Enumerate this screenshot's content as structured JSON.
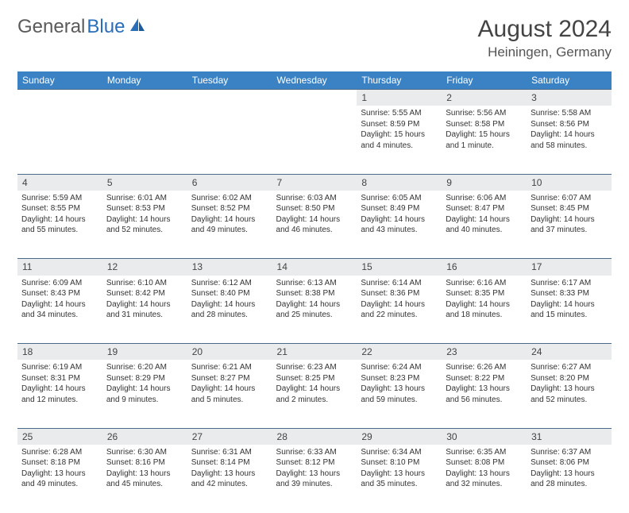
{
  "brand": {
    "part1": "General",
    "part2": "Blue"
  },
  "title": "August 2024",
  "location": "Heiningen, Germany",
  "colors": {
    "header_bg": "#3b82c4",
    "header_text": "#ffffff",
    "daynum_bg": "#e9ebed",
    "border": "#4a6a8a",
    "text": "#333333",
    "logo_gray": "#5a5a5a",
    "logo_blue": "#2a6db8"
  },
  "day_headers": [
    "Sunday",
    "Monday",
    "Tuesday",
    "Wednesday",
    "Thursday",
    "Friday",
    "Saturday"
  ],
  "weeks": [
    {
      "nums": [
        "",
        "",
        "",
        "",
        "1",
        "2",
        "3"
      ],
      "cells": [
        null,
        null,
        null,
        null,
        {
          "sr": "Sunrise: 5:55 AM",
          "ss": "Sunset: 8:59 PM",
          "dl": "Daylight: 15 hours and 4 minutes."
        },
        {
          "sr": "Sunrise: 5:56 AM",
          "ss": "Sunset: 8:58 PM",
          "dl": "Daylight: 15 hours and 1 minute."
        },
        {
          "sr": "Sunrise: 5:58 AM",
          "ss": "Sunset: 8:56 PM",
          "dl": "Daylight: 14 hours and 58 minutes."
        }
      ]
    },
    {
      "nums": [
        "4",
        "5",
        "6",
        "7",
        "8",
        "9",
        "10"
      ],
      "cells": [
        {
          "sr": "Sunrise: 5:59 AM",
          "ss": "Sunset: 8:55 PM",
          "dl": "Daylight: 14 hours and 55 minutes."
        },
        {
          "sr": "Sunrise: 6:01 AM",
          "ss": "Sunset: 8:53 PM",
          "dl": "Daylight: 14 hours and 52 minutes."
        },
        {
          "sr": "Sunrise: 6:02 AM",
          "ss": "Sunset: 8:52 PM",
          "dl": "Daylight: 14 hours and 49 minutes."
        },
        {
          "sr": "Sunrise: 6:03 AM",
          "ss": "Sunset: 8:50 PM",
          "dl": "Daylight: 14 hours and 46 minutes."
        },
        {
          "sr": "Sunrise: 6:05 AM",
          "ss": "Sunset: 8:49 PM",
          "dl": "Daylight: 14 hours and 43 minutes."
        },
        {
          "sr": "Sunrise: 6:06 AM",
          "ss": "Sunset: 8:47 PM",
          "dl": "Daylight: 14 hours and 40 minutes."
        },
        {
          "sr": "Sunrise: 6:07 AM",
          "ss": "Sunset: 8:45 PM",
          "dl": "Daylight: 14 hours and 37 minutes."
        }
      ]
    },
    {
      "nums": [
        "11",
        "12",
        "13",
        "14",
        "15",
        "16",
        "17"
      ],
      "cells": [
        {
          "sr": "Sunrise: 6:09 AM",
          "ss": "Sunset: 8:43 PM",
          "dl": "Daylight: 14 hours and 34 minutes."
        },
        {
          "sr": "Sunrise: 6:10 AM",
          "ss": "Sunset: 8:42 PM",
          "dl": "Daylight: 14 hours and 31 minutes."
        },
        {
          "sr": "Sunrise: 6:12 AM",
          "ss": "Sunset: 8:40 PM",
          "dl": "Daylight: 14 hours and 28 minutes."
        },
        {
          "sr": "Sunrise: 6:13 AM",
          "ss": "Sunset: 8:38 PM",
          "dl": "Daylight: 14 hours and 25 minutes."
        },
        {
          "sr": "Sunrise: 6:14 AM",
          "ss": "Sunset: 8:36 PM",
          "dl": "Daylight: 14 hours and 22 minutes."
        },
        {
          "sr": "Sunrise: 6:16 AM",
          "ss": "Sunset: 8:35 PM",
          "dl": "Daylight: 14 hours and 18 minutes."
        },
        {
          "sr": "Sunrise: 6:17 AM",
          "ss": "Sunset: 8:33 PM",
          "dl": "Daylight: 14 hours and 15 minutes."
        }
      ]
    },
    {
      "nums": [
        "18",
        "19",
        "20",
        "21",
        "22",
        "23",
        "24"
      ],
      "cells": [
        {
          "sr": "Sunrise: 6:19 AM",
          "ss": "Sunset: 8:31 PM",
          "dl": "Daylight: 14 hours and 12 minutes."
        },
        {
          "sr": "Sunrise: 6:20 AM",
          "ss": "Sunset: 8:29 PM",
          "dl": "Daylight: 14 hours and 9 minutes."
        },
        {
          "sr": "Sunrise: 6:21 AM",
          "ss": "Sunset: 8:27 PM",
          "dl": "Daylight: 14 hours and 5 minutes."
        },
        {
          "sr": "Sunrise: 6:23 AM",
          "ss": "Sunset: 8:25 PM",
          "dl": "Daylight: 14 hours and 2 minutes."
        },
        {
          "sr": "Sunrise: 6:24 AM",
          "ss": "Sunset: 8:23 PM",
          "dl": "Daylight: 13 hours and 59 minutes."
        },
        {
          "sr": "Sunrise: 6:26 AM",
          "ss": "Sunset: 8:22 PM",
          "dl": "Daylight: 13 hours and 56 minutes."
        },
        {
          "sr": "Sunrise: 6:27 AM",
          "ss": "Sunset: 8:20 PM",
          "dl": "Daylight: 13 hours and 52 minutes."
        }
      ]
    },
    {
      "nums": [
        "25",
        "26",
        "27",
        "28",
        "29",
        "30",
        "31"
      ],
      "cells": [
        {
          "sr": "Sunrise: 6:28 AM",
          "ss": "Sunset: 8:18 PM",
          "dl": "Daylight: 13 hours and 49 minutes."
        },
        {
          "sr": "Sunrise: 6:30 AM",
          "ss": "Sunset: 8:16 PM",
          "dl": "Daylight: 13 hours and 45 minutes."
        },
        {
          "sr": "Sunrise: 6:31 AM",
          "ss": "Sunset: 8:14 PM",
          "dl": "Daylight: 13 hours and 42 minutes."
        },
        {
          "sr": "Sunrise: 6:33 AM",
          "ss": "Sunset: 8:12 PM",
          "dl": "Daylight: 13 hours and 39 minutes."
        },
        {
          "sr": "Sunrise: 6:34 AM",
          "ss": "Sunset: 8:10 PM",
          "dl": "Daylight: 13 hours and 35 minutes."
        },
        {
          "sr": "Sunrise: 6:35 AM",
          "ss": "Sunset: 8:08 PM",
          "dl": "Daylight: 13 hours and 32 minutes."
        },
        {
          "sr": "Sunrise: 6:37 AM",
          "ss": "Sunset: 8:06 PM",
          "dl": "Daylight: 13 hours and 28 minutes."
        }
      ]
    }
  ]
}
